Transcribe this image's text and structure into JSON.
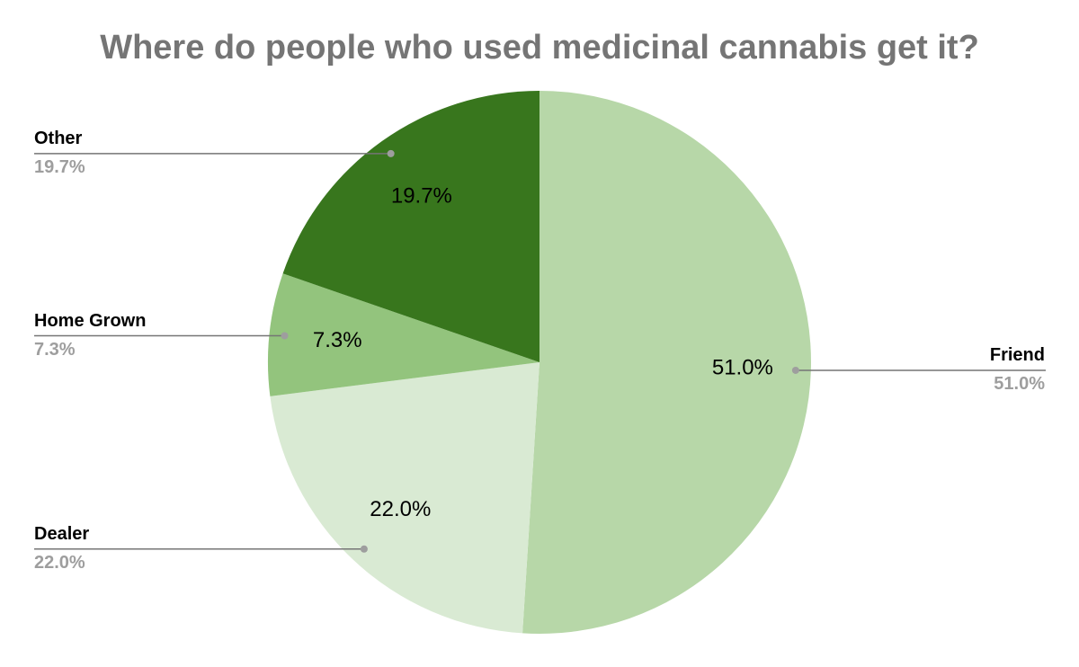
{
  "chart_data": {
    "type": "pie",
    "title": "Where do people who used medicinal cannabis get it?",
    "categories": [
      "Friend",
      "Dealer",
      "Home Grown",
      "Other"
    ],
    "values": [
      51.0,
      22.0,
      7.3,
      19.7
    ],
    "value_labels": [
      "51.0%",
      "22.0%",
      "7.3%",
      "19.7%"
    ],
    "colors": [
      "#b7d7a8",
      "#d9ead3",
      "#93c47d",
      "#38761d"
    ]
  }
}
